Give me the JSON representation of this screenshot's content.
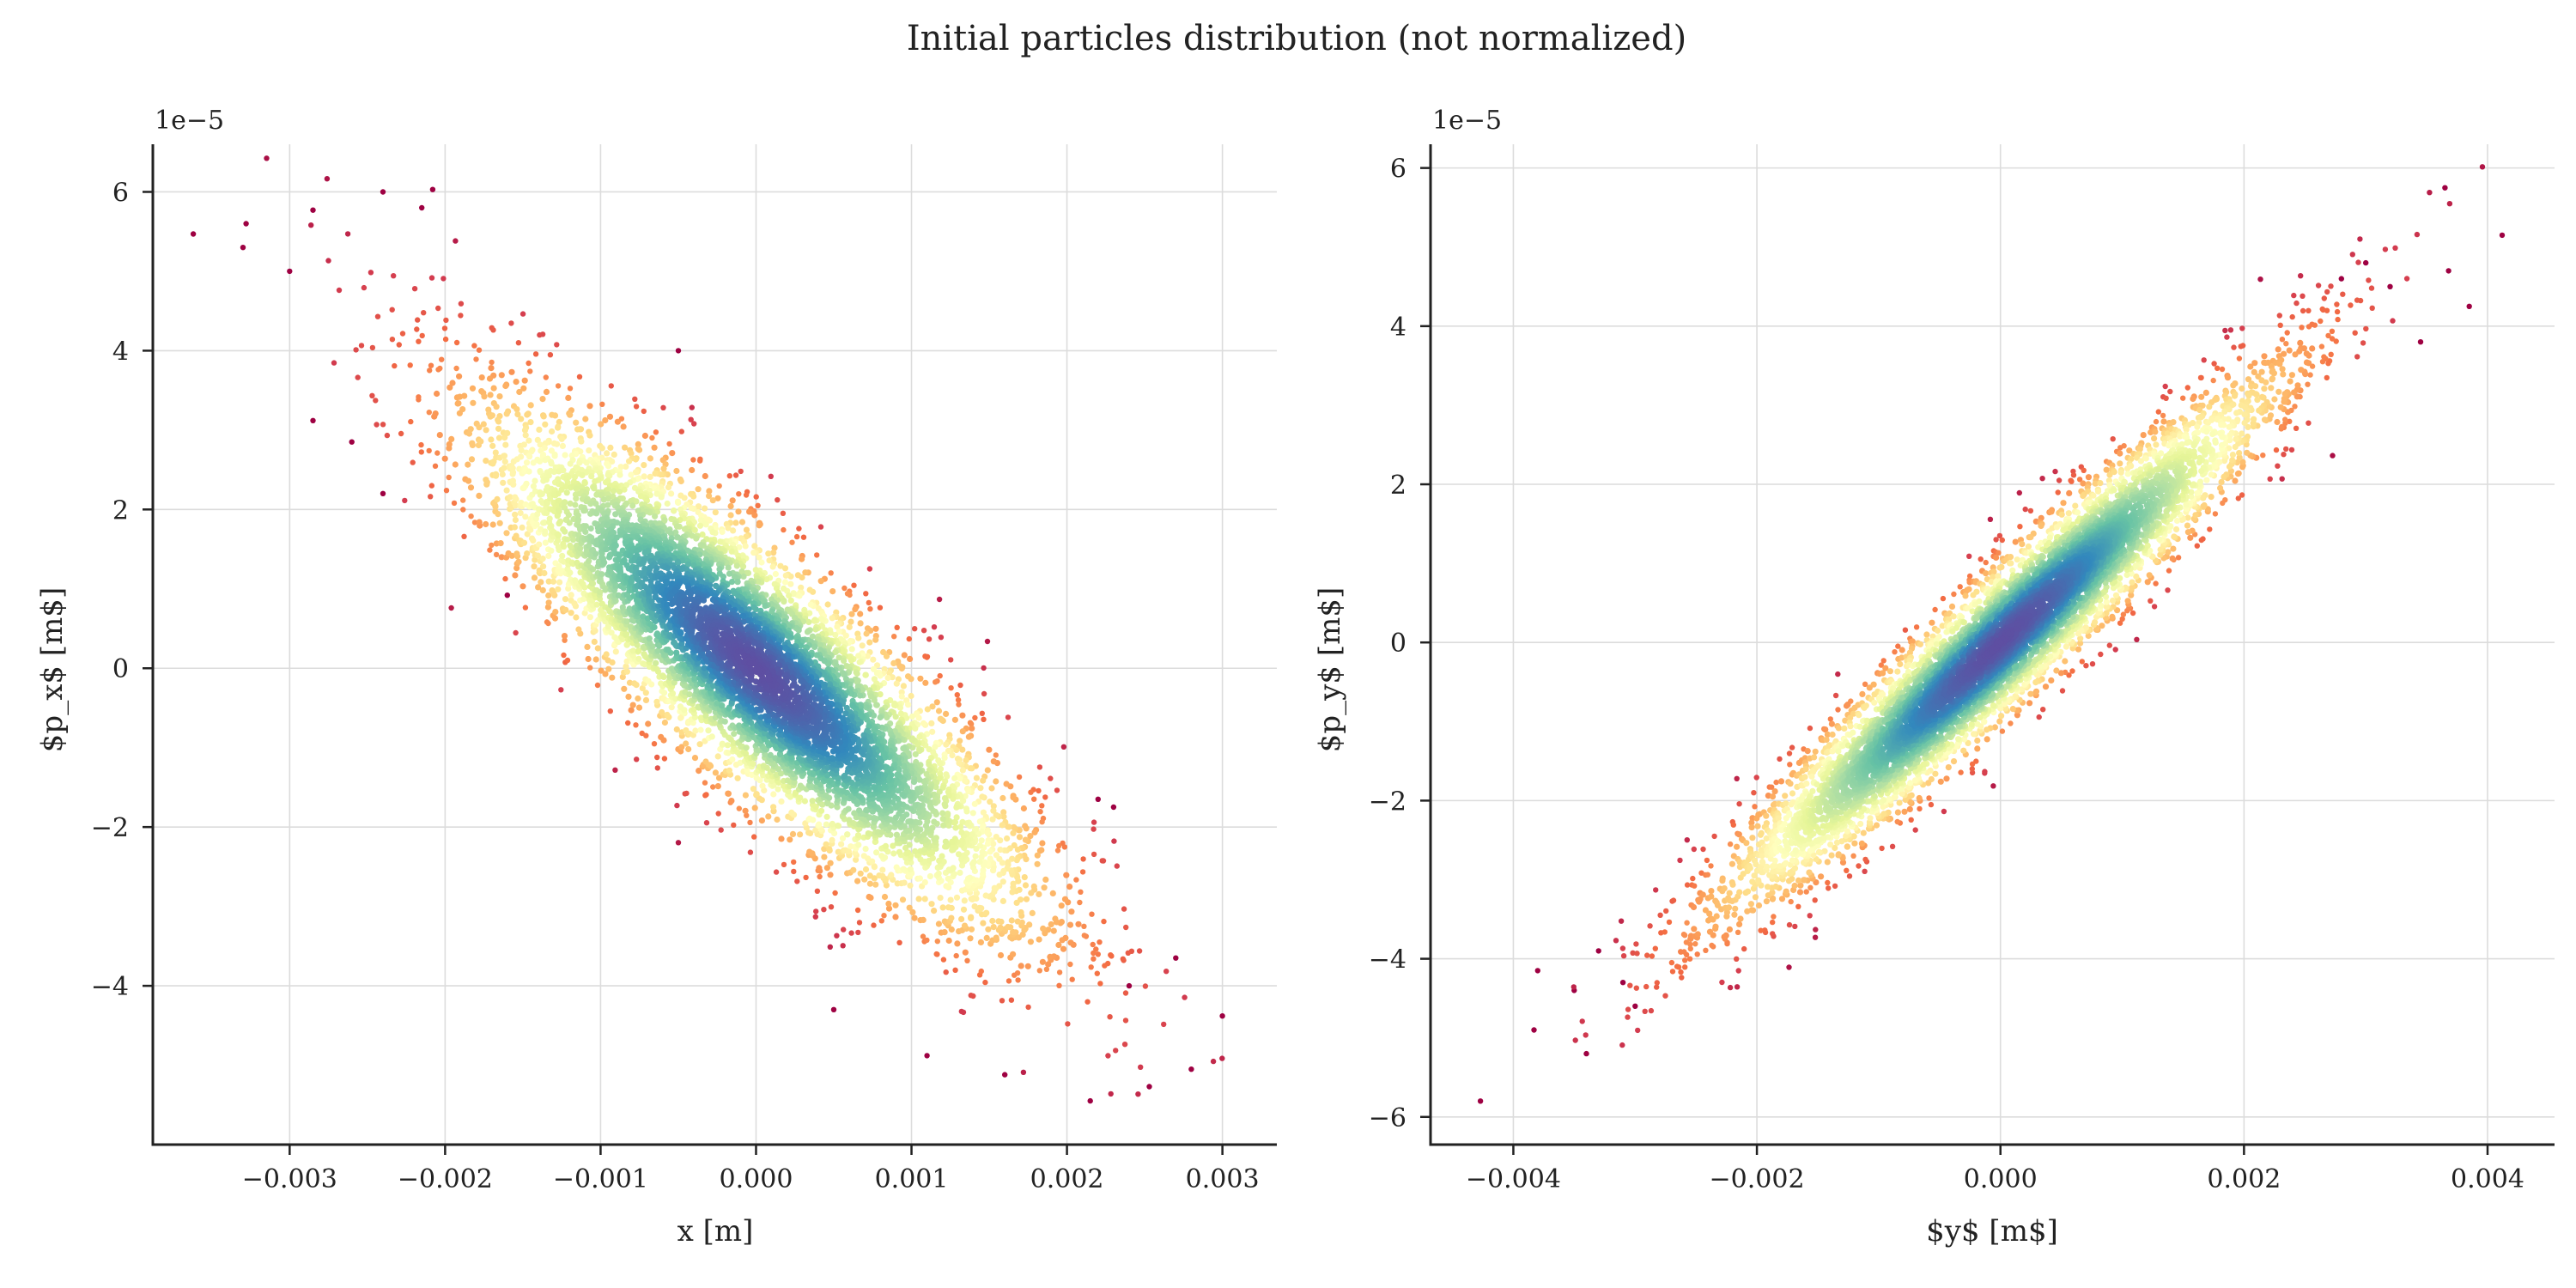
{
  "figure": {
    "title": "Initial particles distribution (not normalized)"
  },
  "colormap": [
    "#5e4fa2",
    "#3288bd",
    "#66c2a5",
    "#abdda4",
    "#e6f598",
    "#ffffbf",
    "#fee08b",
    "#fdae61",
    "#f46d43",
    "#d53e4f",
    "#9e0142"
  ],
  "chart_data": [
    {
      "type": "scatter",
      "subtitle": "",
      "xlabel": "x [m]",
      "ylabel": "$p_x$ [m$]",
      "y_offset_label": "1e−5",
      "xlim": [
        -0.00388,
        0.00335
      ],
      "ylim": [
        -6e-05,
        6.6e-05
      ],
      "xticks": [
        -0.003,
        -0.002,
        -0.001,
        0.0,
        0.001,
        0.002,
        0.003
      ],
      "xtick_labels": [
        "−0.003",
        "−0.002",
        "−0.001",
        "0.000",
        "0.001",
        "0.002",
        "0.003"
      ],
      "yticks": [
        6e-05,
        4e-05,
        2e-05,
        0,
        -2e-05,
        -4e-05
      ],
      "ytick_labels": [
        "6",
        "4",
        "2",
        "0",
        "−2",
        "−4"
      ],
      "grid": true,
      "distribution": {
        "kind": "correlated 2D gaussian, color = point density",
        "x_mean": 0.0,
        "x_std": 0.00085,
        "y_mean": 0.0,
        "y_std": 1.55e-05,
        "correlation": -0.86
      },
      "outlier_points": [
        [
          -0.00362,
          5.47e-05
        ],
        [
          -0.00328,
          5.6e-05
        ],
        [
          -0.00285,
          5.77e-05
        ],
        [
          -0.0024,
          6e-05
        ],
        [
          -0.00208,
          6.03e-05
        ],
        [
          -0.00215,
          5.8e-05
        ],
        [
          -0.0033,
          5.3e-05
        ],
        [
          -0.003,
          5e-05
        ],
        [
          -0.00285,
          3.12e-05
        ],
        [
          -0.0026,
          2.85e-05
        ],
        [
          -0.0024,
          2.2e-05
        ],
        [
          -0.0016,
          9.2e-06
        ],
        [
          -0.0005,
          4e-05
        ],
        [
          0.003,
          -4.38e-05
        ],
        [
          0.0028,
          -5.05e-05
        ],
        [
          0.00253,
          -5.27e-05
        ],
        [
          0.00215,
          -5.45e-05
        ],
        [
          0.0016,
          -5.12e-05
        ],
        [
          0.0011,
          -4.88e-05
        ],
        [
          0.0005,
          -4.3e-05
        ],
        [
          0.0027,
          -3.65e-05
        ],
        [
          0.0024,
          -4e-05
        ],
        [
          0.0022,
          -1.65e-05
        ],
        [
          0.0023,
          -1.75e-05
        ]
      ]
    },
    {
      "type": "scatter",
      "subtitle": "",
      "xlabel": "$y$ [m$]",
      "ylabel": "$p_y$ [m$]",
      "y_offset_label": "1e−5",
      "xlim": [
        -0.00468,
        0.00455
      ],
      "ylim": [
        -6.35e-05,
        6.3e-05
      ],
      "xticks": [
        -0.004,
        -0.002,
        0.0,
        0.002,
        0.004
      ],
      "xtick_labels": [
        "−0.004",
        "−0.002",
        "0.000",
        "0.002",
        "0.004"
      ],
      "yticks": [
        6e-05,
        4e-05,
        2e-05,
        0,
        -2e-05,
        -4e-05,
        -6e-05
      ],
      "ytick_labels": [
        "6",
        "4",
        "2",
        "0",
        "−2",
        "−4",
        "−6"
      ],
      "grid": true,
      "distribution": {
        "kind": "correlated 2D gaussian, color = point density",
        "x_mean": 0.0,
        "x_std": 0.00105,
        "y_mean": 0.0,
        "y_std": 1.55e-05,
        "correlation": 0.955
      },
      "outlier_points": [
        [
          -0.00427,
          -5.8e-05
        ],
        [
          -0.00383,
          -4.9e-05
        ],
        [
          -0.0034,
          -5.2e-05
        ],
        [
          -0.0038,
          -4.15e-05
        ],
        [
          -0.0035,
          -4.4e-05
        ],
        [
          -0.003,
          -4.6e-05
        ],
        [
          -0.0033,
          -3.9e-05
        ],
        [
          -0.0031,
          -4.3e-05
        ],
        [
          0.00365,
          5.75e-05
        ],
        [
          0.00412,
          5.15e-05
        ],
        [
          0.00385,
          4.25e-05
        ],
        [
          0.00368,
          4.7e-05
        ],
        [
          0.00345,
          3.8e-05
        ],
        [
          0.003,
          4.8e-05
        ],
        [
          0.0032,
          4.5e-05
        ],
        [
          0.0028,
          4.6e-05
        ]
      ]
    }
  ]
}
